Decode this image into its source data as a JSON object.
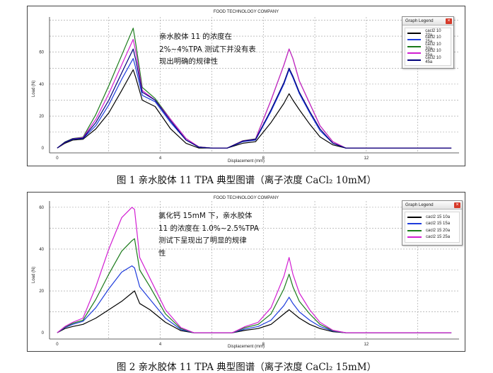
{
  "chart_data": [
    {
      "type": "line",
      "title": "FOOD TECHNOLOGY COMPANY",
      "xlabel": "Displacement (mm)",
      "ylabel": "Load (N)",
      "xlim": [
        -0.3,
        15.6
      ],
      "ylim": [
        -3,
        82
      ],
      "xticks": [
        0,
        4,
        8,
        12
      ],
      "yticks": [
        0,
        20,
        40,
        60
      ],
      "grid": true,
      "legend_title": "Graph Legend",
      "legend_position": "top-right",
      "annotation": [
        "亲水胶体 11 的浓度在",
        "2%~4%TPA 测试下并没有表",
        "现出明确的规律性"
      ],
      "series": [
        {
          "name": "cacl2 10 20a",
          "color": "#000000",
          "peak1": 49,
          "peak2": 34,
          "x": [
            0,
            0.3,
            0.6,
            1.0,
            1.5,
            2.0,
            2.5,
            2.95,
            3.05,
            3.3,
            3.8,
            4.4,
            5.0,
            5.5,
            6.0,
            6.6,
            7.2,
            7.7,
            8.3,
            8.8,
            9.0,
            9.15,
            9.4,
            9.8,
            10.2,
            10.7,
            11.2,
            12.0,
            15.3
          ],
          "y": [
            0,
            3,
            5,
            5.5,
            12,
            22,
            36,
            49,
            44,
            30,
            26,
            12,
            3,
            0,
            0,
            0,
            3,
            4,
            16,
            28,
            34,
            30,
            24,
            15,
            7,
            2,
            0,
            0,
            0
          ]
        },
        {
          "name": "cacl2 10 25a",
          "color": "#1e3cdc",
          "peak1": 56,
          "peak2": 49,
          "x": [
            0,
            0.3,
            0.6,
            1.0,
            1.5,
            2.0,
            2.5,
            2.95,
            3.05,
            3.3,
            3.8,
            4.4,
            5.0,
            5.5,
            6.0,
            6.6,
            7.2,
            7.7,
            8.3,
            8.8,
            9.0,
            9.15,
            9.4,
            9.8,
            10.2,
            10.7,
            11.2,
            12.0,
            15.3
          ],
          "y": [
            0,
            3.5,
            5.5,
            6,
            14,
            27,
            43,
            56,
            50,
            33,
            29,
            16,
            5,
            0.5,
            0,
            0,
            4,
            5,
            23,
            40,
            49,
            44,
            34,
            22,
            11,
            3,
            0,
            0,
            0
          ]
        },
        {
          "name": "cacl2 10 30a",
          "color": "#1a7a1a",
          "peak1": 75,
          "peak2": 62,
          "x": [
            0,
            0.3,
            0.6,
            1.0,
            1.5,
            2.0,
            2.5,
            2.95,
            3.05,
            3.3,
            3.8,
            4.4,
            5.0,
            5.5,
            6.0,
            6.6,
            7.2,
            7.7,
            8.3,
            8.8,
            9.0,
            9.15,
            9.4,
            9.8,
            10.2,
            10.7,
            11.2,
            12.0,
            15.3
          ],
          "y": [
            0,
            3.8,
            6,
            6.8,
            21,
            39,
            58,
            75,
            65,
            38,
            31,
            18,
            6,
            0.7,
            0,
            0,
            4.6,
            5.8,
            30,
            52,
            62,
            56,
            42,
            28,
            14,
            4,
            0,
            0,
            0
          ]
        },
        {
          "name": "cacl2 10 35a",
          "color": "#d21ed2",
          "peak1": 68,
          "peak2": 62,
          "x": [
            0,
            0.3,
            0.6,
            1.0,
            1.5,
            2.0,
            2.5,
            2.95,
            3.05,
            3.3,
            3.8,
            4.4,
            5.0,
            5.5,
            6.0,
            6.6,
            7.2,
            7.7,
            8.3,
            8.8,
            9.0,
            9.15,
            9.4,
            9.8,
            10.2,
            10.7,
            11.2,
            12.0,
            15.3
          ],
          "y": [
            0,
            3.6,
            5.8,
            6.5,
            18,
            34,
            52,
            68,
            60,
            36,
            30,
            18,
            6,
            0.7,
            0,
            0,
            4.5,
            5.6,
            30,
            52,
            62,
            56,
            42,
            28,
            14,
            4,
            0,
            0,
            0
          ]
        },
        {
          "name": "cacl2 10 45a",
          "color": "#00007a",
          "peak1": 62,
          "peak2": 50,
          "x": [
            0,
            0.3,
            0.6,
            1.0,
            1.5,
            2.0,
            2.5,
            2.95,
            3.05,
            3.3,
            3.8,
            4.4,
            5.0,
            5.5,
            6.0,
            6.6,
            7.2,
            7.7,
            8.3,
            8.8,
            9.0,
            9.15,
            9.4,
            9.8,
            10.2,
            10.7,
            11.2,
            12.0,
            15.3
          ],
          "y": [
            0,
            3.7,
            5.7,
            6.2,
            16,
            30,
            47,
            62,
            55,
            35,
            30,
            17,
            5,
            0.6,
            0,
            0,
            4.3,
            5.4,
            24,
            41,
            50,
            45,
            35,
            23,
            12,
            3,
            0,
            0,
            0
          ]
        }
      ]
    },
    {
      "type": "line",
      "title": "FOOD TECHNOLOGY COMPANY",
      "xlabel": "Displacement (mm)",
      "ylabel": "Load (N)",
      "xlim": [
        -0.3,
        15.6
      ],
      "ylim": [
        -3,
        63
      ],
      "xticks": [
        0,
        4,
        8,
        12
      ],
      "yticks": [
        0,
        20,
        40,
        60
      ],
      "grid": true,
      "legend_title": "Graph Legend",
      "legend_position": "top-right",
      "annotation": [
        "氯化钙 15mM 下，亲水胶体",
        "11 的浓度在 1.0%~2.5%TPA",
        "测试下呈现出了明显的规律",
        "性"
      ],
      "series": [
        {
          "name": "cacl2 15 10a",
          "color": "#000000",
          "peak1": 20,
          "peak2": 11,
          "x": [
            0,
            0.3,
            0.6,
            1.0,
            1.5,
            2.0,
            2.5,
            2.9,
            3.0,
            3.2,
            3.6,
            4.2,
            4.8,
            5.3,
            6.0,
            6.8,
            7.3,
            7.8,
            8.3,
            8.8,
            9.0,
            9.15,
            9.4,
            9.8,
            10.2,
            10.7,
            11.2,
            12.0,
            15.3
          ],
          "y": [
            0,
            2,
            3,
            4,
            7,
            11,
            15,
            19,
            20,
            14,
            11,
            5,
            1,
            0,
            0,
            0,
            1.2,
            2,
            4,
            9,
            11,
            9.5,
            7,
            4,
            2,
            0.5,
            0,
            0,
            0
          ]
        },
        {
          "name": "cacl2 15 15a",
          "color": "#1e3cdc",
          "peak1": 32,
          "peak2": 17,
          "x": [
            0,
            0.3,
            0.6,
            1.0,
            1.5,
            2.0,
            2.5,
            2.9,
            3.0,
            3.2,
            3.6,
            4.2,
            4.8,
            5.3,
            6.0,
            6.8,
            7.3,
            7.8,
            8.3,
            8.8,
            9.0,
            9.15,
            9.4,
            9.8,
            10.2,
            10.7,
            11.2,
            12.0,
            15.3
          ],
          "y": [
            0,
            2.5,
            4,
            5.5,
            12,
            21,
            29,
            32,
            31,
            22,
            16,
            7,
            1.5,
            0,
            0,
            0,
            1.8,
            3,
            6,
            13,
            17,
            14,
            10,
            6,
            3,
            0.8,
            0,
            0,
            0
          ]
        },
        {
          "name": "cacl2 15 20a",
          "color": "#1a7a1a",
          "peak1": 45,
          "peak2": 28,
          "x": [
            0,
            0.3,
            0.6,
            1.0,
            1.5,
            2.0,
            2.5,
            2.9,
            3.0,
            3.2,
            3.6,
            4.2,
            4.8,
            5.3,
            6.0,
            6.8,
            7.3,
            7.8,
            8.3,
            8.8,
            9.0,
            9.15,
            9.4,
            9.8,
            10.2,
            10.7,
            11.2,
            12.0,
            15.3
          ],
          "y": [
            0,
            2.8,
            4.5,
            6,
            16,
            28,
            39,
            44,
            45,
            30,
            22,
            9,
            2,
            0,
            0,
            0,
            2.5,
            4,
            9,
            21,
            28,
            22,
            15,
            9,
            4,
            1,
            0,
            0,
            0
          ]
        },
        {
          "name": "cacl2 15 25a",
          "color": "#d21ed2",
          "peak1": 60,
          "peak2": 36,
          "x": [
            0,
            0.3,
            0.6,
            1.0,
            1.5,
            2.0,
            2.5,
            2.9,
            3.0,
            3.2,
            3.6,
            4.2,
            4.8,
            5.3,
            6.0,
            6.8,
            7.3,
            7.8,
            8.3,
            8.8,
            9.0,
            9.15,
            9.4,
            9.8,
            10.2,
            10.7,
            11.2,
            12.0,
            15.3
          ],
          "y": [
            0,
            3,
            5,
            7,
            22,
            40,
            55,
            60,
            59,
            36,
            26,
            11,
            2.5,
            0,
            0,
            0,
            3,
            5,
            12,
            27,
            36,
            28,
            19,
            11,
            5,
            1.2,
            0,
            0,
            0
          ]
        }
      ]
    }
  ],
  "captions": [
    "图 1  亲水胶体 11 TPA 典型图谱（离子浓度 CaCl₂ 10mM）",
    "图 2  亲水胶体 11 TPA 典型图谱（离子浓度 CaCl₂ 15mM）"
  ],
  "legend_close_glyph": "×"
}
